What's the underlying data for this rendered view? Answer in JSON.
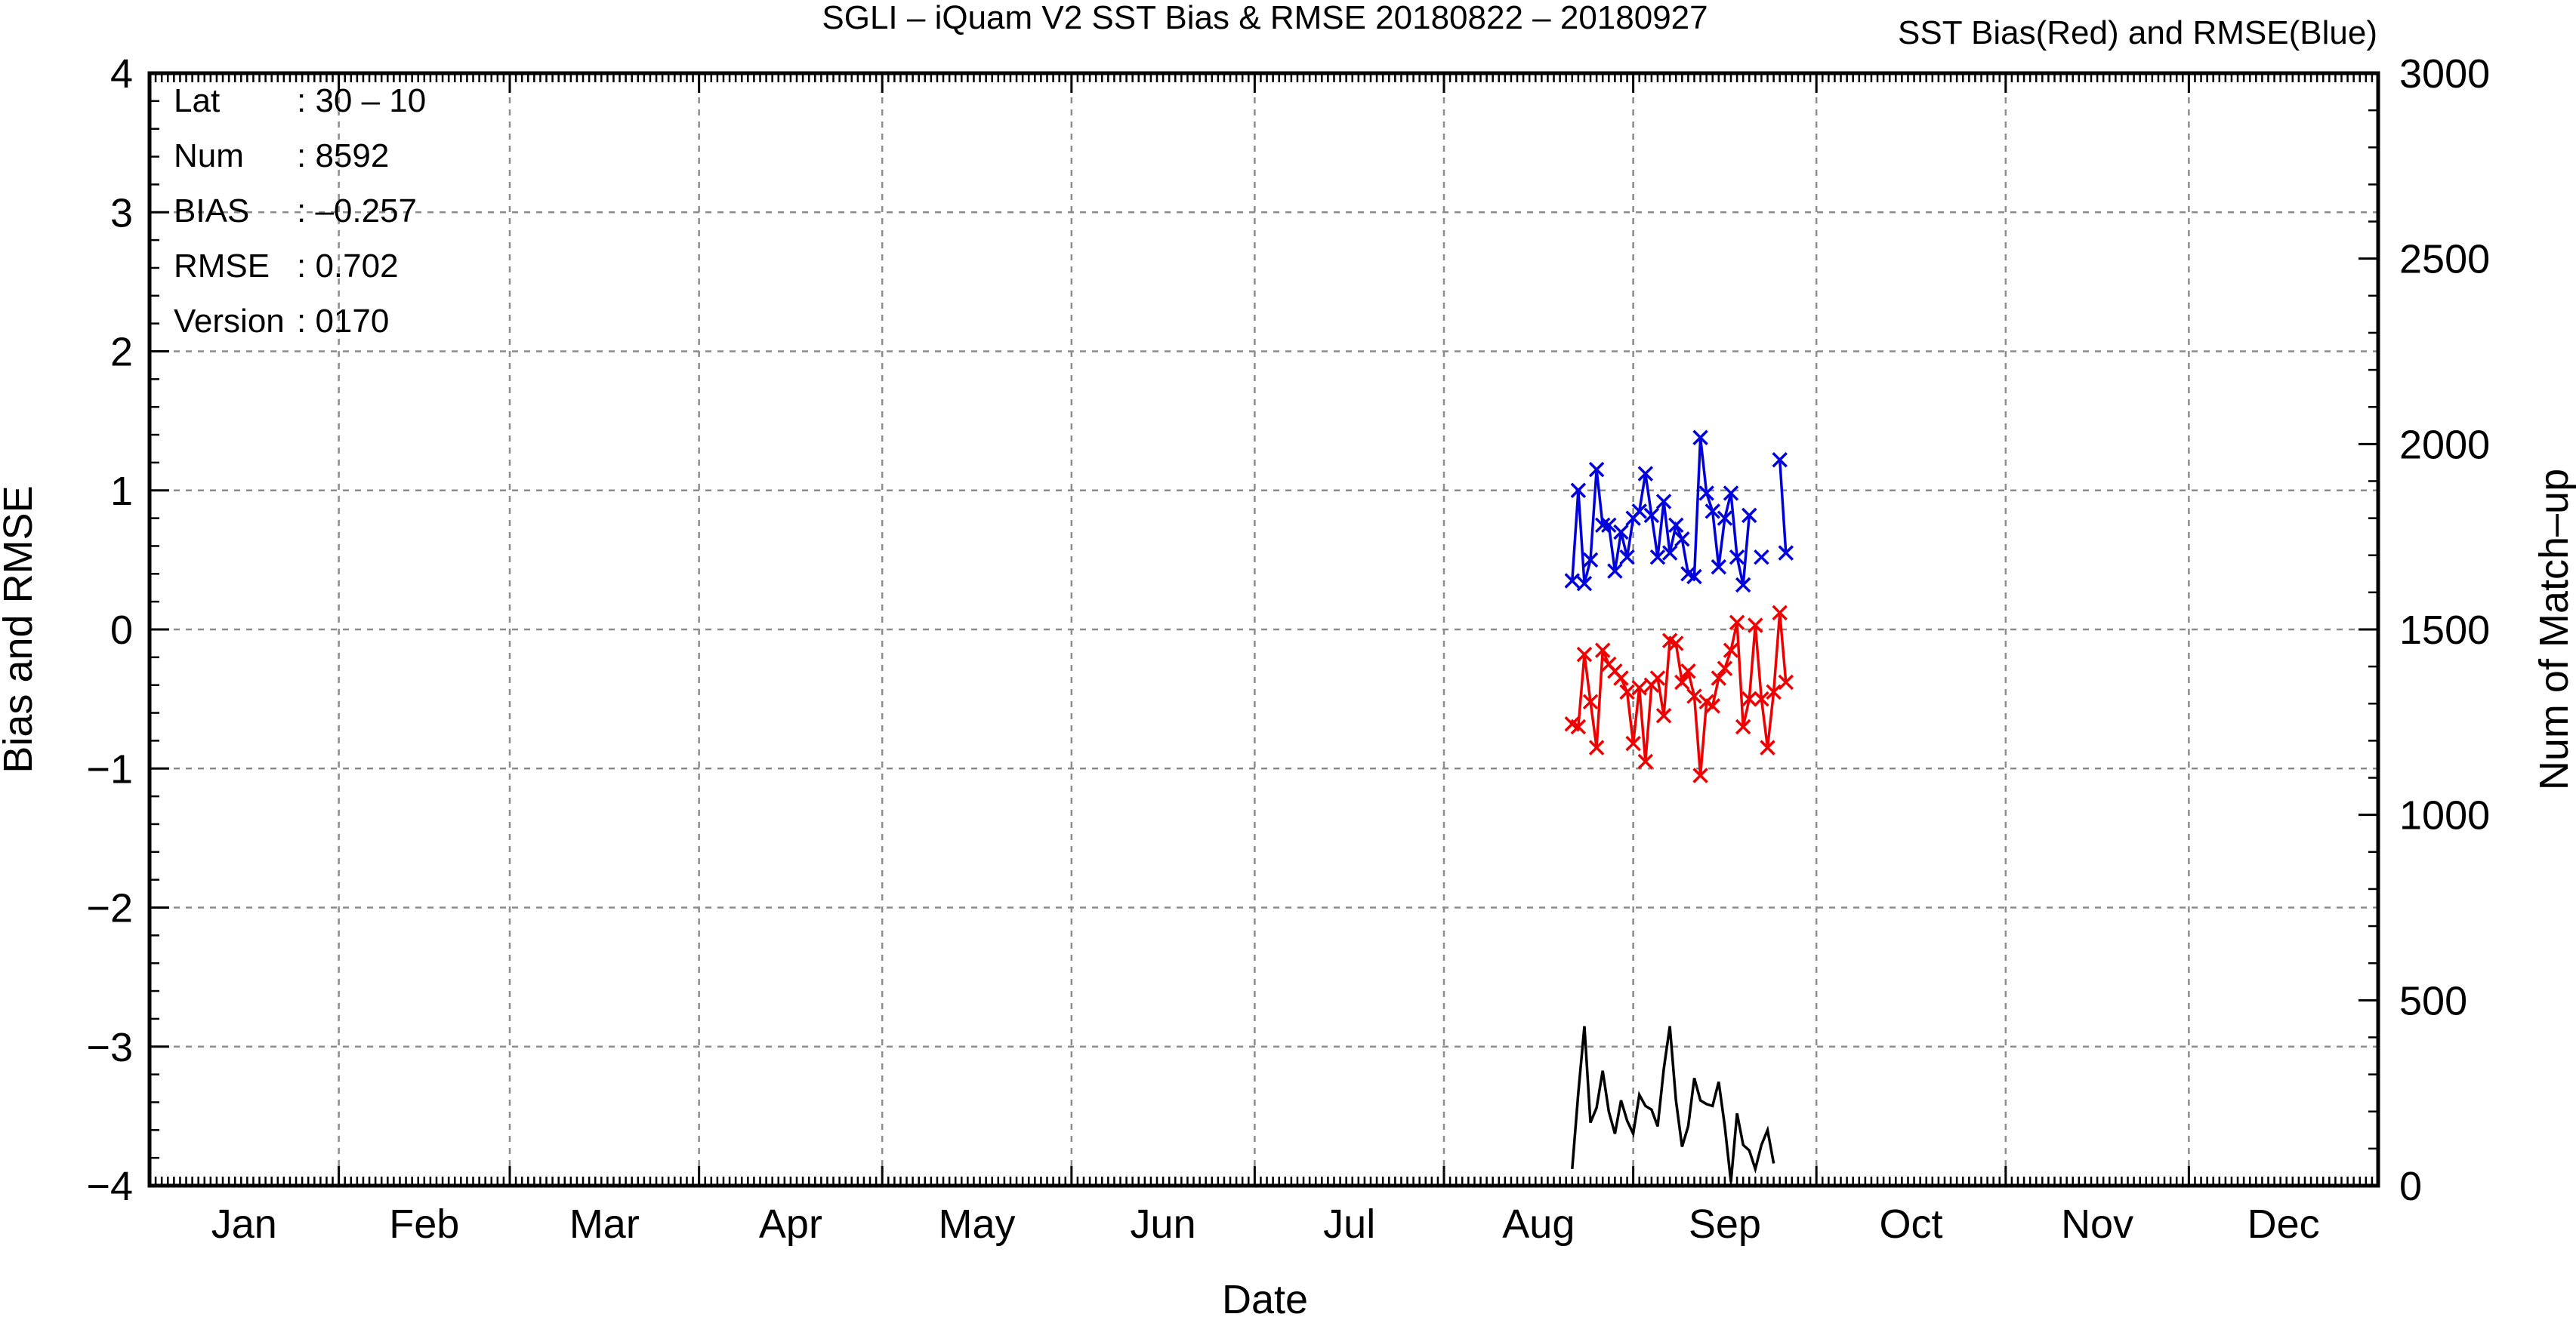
{
  "chart_data": {
    "type": "line",
    "title": "SGLI – iQuam V2 SST Bias & RMSE 20180822 – 20180927",
    "subtitle": "SST Bias(Red) and RMSE(Blue)",
    "xlabel": "Date",
    "ylabel": "Bias and RMSE",
    "y2label": "Num of Match–up",
    "xlim": [
      0,
      365
    ],
    "ylim": [
      -4,
      4
    ],
    "y2lim": [
      0,
      3000
    ],
    "grid": true,
    "months": [
      "Jan",
      "Feb",
      "Mar",
      "Apr",
      "May",
      "Jun",
      "Jul",
      "Aug",
      "Sep",
      "Oct",
      "Nov",
      "Dec"
    ],
    "month_starts": [
      0,
      31,
      59,
      90,
      120,
      151,
      181,
      212,
      243,
      273,
      304,
      334
    ],
    "yticks": [
      "4",
      "3",
      "2",
      "1",
      "0",
      "−1",
      "−2",
      "−3",
      "−4"
    ],
    "y2ticks": [
      "3000",
      "2500",
      "2000",
      "1500",
      "1000",
      "500",
      "0"
    ],
    "stats": [
      {
        "label": "Lat",
        "value": ": 30 – 10"
      },
      {
        "label": "Num",
        "value": ": 8592"
      },
      {
        "label": "BIAS",
        "value": ": –0.257"
      },
      {
        "label": "RMSE",
        "value": ": 0.702"
      },
      {
        "label": "Version",
        "value": ": 0170"
      }
    ],
    "colors": {
      "bias": "#ee0000",
      "rmse": "#0000dd",
      "count": "#000000"
    },
    "series": [
      {
        "key": "rmse",
        "axis": "left",
        "marker": "x",
        "x": [
          233,
          234,
          235,
          236,
          237,
          238,
          239,
          240,
          241,
          242,
          243,
          244,
          245,
          246,
          247,
          248,
          249,
          250,
          251,
          252,
          253,
          254,
          255,
          256,
          257,
          258,
          259,
          260,
          261,
          262,
          263,
          264,
          265,
          266,
          267,
          268,
          269
        ],
        "values": [
          0.35,
          1.0,
          0.33,
          0.5,
          1.15,
          0.75,
          0.75,
          0.42,
          0.7,
          0.52,
          0.8,
          0.85,
          1.12,
          0.82,
          0.52,
          0.92,
          0.55,
          0.75,
          0.65,
          0.4,
          0.38,
          1.38,
          0.98,
          0.85,
          0.45,
          0.8,
          0.98,
          0.52,
          0.32,
          0.82,
          null,
          0.52,
          null,
          null,
          1.22,
          0.55,
          null
        ]
      },
      {
        "key": "bias",
        "axis": "left",
        "marker": "x",
        "x": [
          233,
          234,
          235,
          236,
          237,
          238,
          239,
          240,
          241,
          242,
          243,
          244,
          245,
          246,
          247,
          248,
          249,
          250,
          251,
          252,
          253,
          254,
          255,
          256,
          257,
          258,
          259,
          260,
          261,
          262,
          263,
          264,
          265,
          266,
          267,
          268,
          269
        ],
        "values": [
          -0.68,
          -0.7,
          -0.18,
          -0.52,
          -0.85,
          -0.15,
          -0.25,
          -0.3,
          -0.35,
          -0.45,
          -0.82,
          -0.42,
          -0.95,
          -0.4,
          -0.35,
          -0.62,
          -0.08,
          -0.1,
          -0.38,
          -0.3,
          -0.48,
          -1.05,
          -0.52,
          -0.55,
          -0.35,
          -0.28,
          -0.15,
          0.05,
          -0.7,
          -0.5,
          0.03,
          -0.5,
          -0.85,
          -0.45,
          0.12,
          -0.38,
          null
        ]
      },
      {
        "key": "count",
        "axis": "right",
        "marker": "none",
        "x": [
          233,
          234,
          235,
          236,
          237,
          238,
          239,
          240,
          241,
          242,
          243,
          244,
          245,
          246,
          247,
          248,
          249,
          250,
          251,
          252,
          253,
          254,
          255,
          256,
          257,
          258,
          259,
          260,
          261,
          262,
          263,
          264,
          265,
          266,
          267,
          268,
          269
        ],
        "values": [
          45,
          250,
          430,
          170,
          210,
          310,
          200,
          140,
          230,
          175,
          140,
          245,
          215,
          205,
          160,
          315,
          430,
          230,
          105,
          160,
          290,
          230,
          220,
          215,
          280,
          160,
          10,
          195,
          110,
          95,
          45,
          110,
          150,
          60,
          null,
          null,
          null
        ]
      }
    ]
  }
}
